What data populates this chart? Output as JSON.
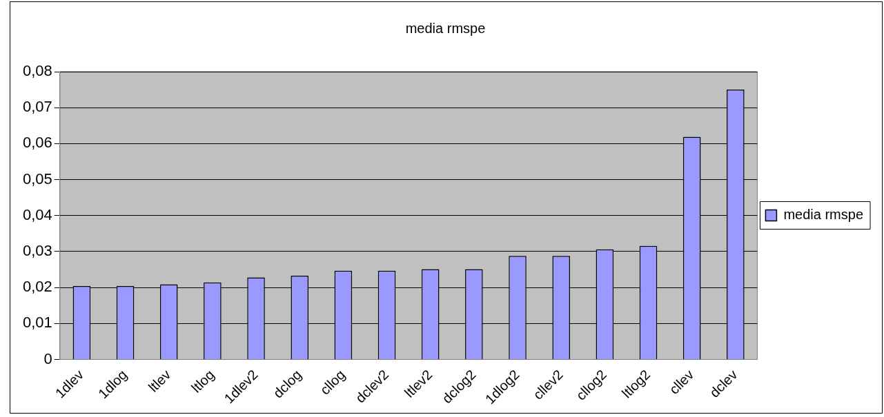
{
  "chart_data": {
    "type": "bar",
    "title": "media rmspe",
    "categories": [
      "1dlev",
      "1dlog",
      "ltlev",
      "ltlog",
      "1dlev2",
      "dclog",
      "cllog",
      "dclev2",
      "ltlev2",
      "dclog2",
      "1dlog2",
      "cllev2",
      "cllog2",
      "ltlog2",
      "cllev",
      "dclev"
    ],
    "series": [
      {
        "name": "media rmspe",
        "color": "#9999ff",
        "values": [
          0.0204,
          0.0204,
          0.0209,
          0.0214,
          0.0228,
          0.0233,
          0.0247,
          0.0247,
          0.0251,
          0.0251,
          0.0288,
          0.0288,
          0.0306,
          0.0316,
          0.0619,
          0.075
        ]
      }
    ],
    "ylim": [
      0,
      0.08
    ],
    "yticks": [
      0,
      {
        "value": 0.01,
        "label": "0,01"
      },
      {
        "value": 0.02,
        "label": "0,02"
      },
      {
        "value": 0.03,
        "label": "0,03"
      },
      {
        "value": 0.04,
        "label": "0,04"
      },
      {
        "value": 0.05,
        "label": "0,05"
      },
      {
        "value": 0.06,
        "label": "0,06"
      },
      {
        "value": 0.07,
        "label": "0,07"
      },
      {
        "value": 0.08,
        "label": "0,08"
      }
    ],
    "grid": "y",
    "legend": "right"
  }
}
